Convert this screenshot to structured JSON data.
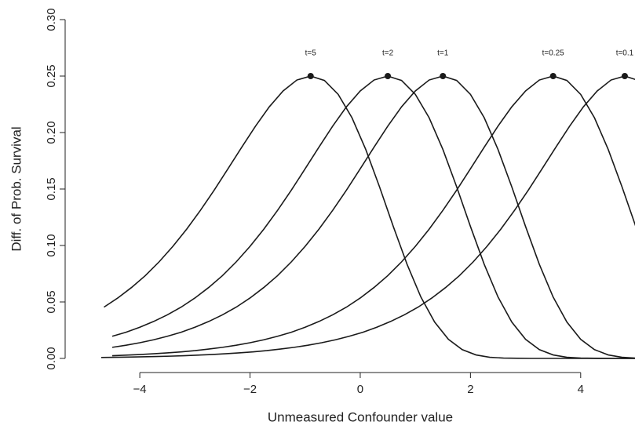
{
  "chart_data": {
    "type": "line",
    "xlabel": "Unmeasured Confounder value",
    "ylabel": "Diff. of Prob. Survival",
    "xlim": [
      -4.5,
      5
    ],
    "ylim": [
      0,
      0.3
    ],
    "xticks": [
      {
        "value": -4,
        "label": "−4"
      },
      {
        "value": -2,
        "label": "−2"
      },
      0,
      2,
      4
    ],
    "yticks": [
      {
        "value": 0,
        "label": "0.00"
      },
      {
        "value": 0.05,
        "label": "0.05"
      },
      {
        "value": 0.1,
        "label": "0.10"
      },
      {
        "value": 0.15,
        "label": "0.15"
      },
      {
        "value": 0.2,
        "label": "0.20"
      },
      {
        "value": 0.25,
        "label": "0.25"
      },
      {
        "value": 0.3,
        "label": "0.30"
      }
    ],
    "color": "#1a1a1a",
    "series": [
      {
        "name": "t=5",
        "x": [
          -4.65,
          -4.4,
          -4.15,
          -3.9,
          -3.65,
          -3.4,
          -3.15,
          -2.9,
          -2.65,
          -2.4,
          -2.15,
          -1.9,
          -1.65,
          -1.4,
          -1.15,
          -0.9,
          -0.65,
          -0.4,
          -0.15,
          0.1,
          0.35,
          0.6,
          0.85,
          1.1,
          1.35,
          1.6,
          1.85,
          2.1,
          2.35,
          2.6,
          2.85,
          3.1,
          5.1
        ],
        "values": [
          0.0454,
          0.0535,
          0.0628,
          0.0733,
          0.0855,
          0.0992,
          0.1144,
          0.1311,
          0.149,
          0.1679,
          0.187,
          0.2057,
          0.2228,
          0.2368,
          0.2465,
          0.25,
          0.2461,
          0.2338,
          0.2131,
          0.185,
          0.1519,
          0.1168,
          0.0833,
          0.0544,
          0.0322,
          0.0169,
          0.0078,
          0.0031,
          0.001,
          0.0003,
          0.0001,
          0,
          0
        ]
      },
      {
        "name": "t=2",
        "x": [
          -4.5,
          -4.25,
          -4,
          -3.75,
          -3.5,
          -3.25,
          -3,
          -2.75,
          -2.5,
          -2.25,
          -2,
          -1.75,
          -1.5,
          -1.25,
          -1,
          -0.75,
          -0.5,
          -0.25,
          0,
          0.25,
          0.5,
          0.75,
          1,
          1.25,
          1.5,
          1.75,
          2,
          2.25,
          2.5,
          2.75,
          3,
          3.25,
          3.5,
          3.75,
          4,
          4.25,
          4.5,
          4.75,
          5
        ],
        "values": [
          0.0196,
          0.0232,
          0.0276,
          0.0327,
          0.0386,
          0.0454,
          0.0535,
          0.0628,
          0.0733,
          0.0855,
          0.0992,
          0.1144,
          0.1311,
          0.149,
          0.1679,
          0.187,
          0.2057,
          0.2228,
          0.2368,
          0.2465,
          0.25,
          0.2461,
          0.2338,
          0.2131,
          0.185,
          0.1519,
          0.1168,
          0.0833,
          0.0544,
          0.0322,
          0.0169,
          0.0078,
          0.0031,
          0.001,
          0.0003,
          0.0001,
          0,
          0,
          0
        ]
      },
      {
        "name": "t=1",
        "x": [
          -4.5,
          -4.25,
          -4,
          -3.75,
          -3.5,
          -3.25,
          -3,
          -2.75,
          -2.5,
          -2.25,
          -2,
          -1.75,
          -1.5,
          -1.25,
          -1,
          -0.75,
          -0.5,
          -0.25,
          0,
          0.25,
          0.5,
          0.75,
          1,
          1.25,
          1.5,
          1.75,
          2,
          2.25,
          2.5,
          2.75,
          3,
          3.25,
          3.5,
          3.75,
          4,
          4.25,
          4.5,
          4.75,
          5
        ],
        "values": [
          0.0098,
          0.0117,
          0.0139,
          0.0165,
          0.0196,
          0.0232,
          0.0276,
          0.0327,
          0.0386,
          0.0454,
          0.0535,
          0.0628,
          0.0733,
          0.0855,
          0.0992,
          0.1144,
          0.1311,
          0.149,
          0.1679,
          0.187,
          0.2057,
          0.2228,
          0.2368,
          0.2465,
          0.25,
          0.2461,
          0.2338,
          0.2131,
          0.185,
          0.1519,
          0.1168,
          0.0833,
          0.0544,
          0.0322,
          0.0169,
          0.0078,
          0.0031,
          0.001,
          0.0003
        ]
      },
      {
        "name": "t=0.25",
        "x": [
          -4.5,
          -4.25,
          -4,
          -3.75,
          -3.5,
          -3.25,
          -3,
          -2.75,
          -2.5,
          -2.25,
          -2,
          -1.75,
          -1.5,
          -1.25,
          -1,
          -0.75,
          -0.5,
          -0.25,
          0,
          0.25,
          0.5,
          0.75,
          1,
          1.25,
          1.5,
          1.75,
          2,
          2.25,
          2.5,
          2.75,
          3,
          3.25,
          3.5,
          3.75,
          4,
          4.25,
          4.5,
          4.75,
          5
        ],
        "values": [
          0.0024,
          0.0029,
          0.0034,
          0.0041,
          0.0049,
          0.0058,
          0.0069,
          0.0083,
          0.0098,
          0.0117,
          0.0139,
          0.0165,
          0.0196,
          0.0232,
          0.0276,
          0.0327,
          0.0386,
          0.0454,
          0.0535,
          0.0628,
          0.0733,
          0.0855,
          0.0992,
          0.1144,
          0.1311,
          0.149,
          0.1679,
          0.187,
          0.2057,
          0.2228,
          0.2368,
          0.2465,
          0.25,
          0.2461,
          0.2338,
          0.2131,
          0.185,
          0.1519,
          0.1168
        ]
      },
      {
        "name": "t=0.1",
        "x": [
          -4.7,
          -4.45,
          -4.2,
          -3.95,
          -3.7,
          -3.45,
          -3.2,
          -2.95,
          -2.7,
          -2.45,
          -2.2,
          -1.95,
          -1.7,
          -1.45,
          -1.2,
          -0.95,
          -0.7,
          -0.45,
          -0.2,
          0.05,
          0.3,
          0.55,
          0.8,
          1.05,
          1.3,
          1.55,
          1.8,
          2.05,
          2.3,
          2.55,
          2.8,
          3.05,
          3.3,
          3.55,
          3.8,
          4.05,
          4.3,
          4.55,
          4.8,
          5.05
        ],
        "values": [
          0.0008,
          0.001,
          0.0012,
          0.0014,
          0.0017,
          0.002,
          0.0024,
          0.0029,
          0.0034,
          0.0041,
          0.0049,
          0.0058,
          0.0069,
          0.0083,
          0.0098,
          0.0117,
          0.0139,
          0.0165,
          0.0196,
          0.0232,
          0.0276,
          0.0327,
          0.0386,
          0.0454,
          0.0535,
          0.0628,
          0.0733,
          0.0855,
          0.0992,
          0.1144,
          0.1311,
          0.149,
          0.1679,
          0.187,
          0.2057,
          0.2228,
          0.2368,
          0.2465,
          0.25,
          0.2461
        ]
      }
    ]
  }
}
